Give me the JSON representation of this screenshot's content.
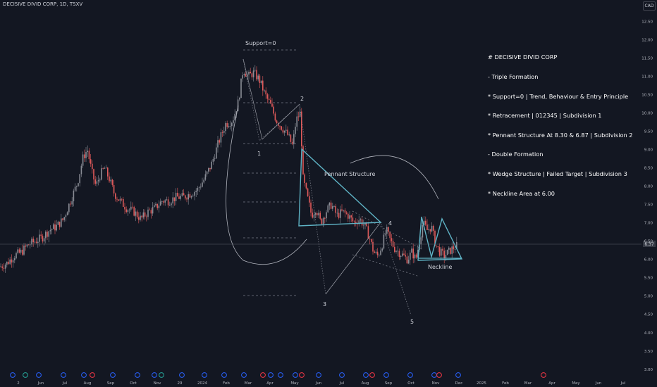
{
  "header": {
    "symbol": "DECISIVE DIVID CORP, 1D, TSXV",
    "currency": "CAD"
  },
  "note_lines": [
    "# DECISIVE DIVID CORP",
    "- Triple Formation",
    "* Support=0 | Trend, Behaviour & Entry Principle",
    "* Retracement | 012345 | Subdivision 1",
    "* Pennant Structure At 8.30 & 6.87 | Subdivision 2",
    "- Double Formation",
    "* Wedge Structure | Failed Target | Subdivision 3",
    "* Neckline Area at 6.00"
  ],
  "chart_data": {
    "type": "candlestick",
    "y_axis": {
      "ticks": [
        3.0,
        3.5,
        4.0,
        4.5,
        5.0,
        5.5,
        6.0,
        6.5,
        7.0,
        7.5,
        8.0,
        8.5,
        9.0,
        9.5,
        10.0,
        10.5,
        11.0,
        11.5,
        12.0,
        12.5
      ],
      "range": [
        2.9,
        12.7
      ]
    },
    "current_price_label": "6.37",
    "x_axis_labels": [
      "2",
      "Jun",
      "Jul",
      "Aug",
      "Sep",
      "Oct",
      "Nov",
      "29",
      "2024",
      "Feb",
      "Mar",
      "Apr",
      "May",
      "Jun",
      "Jul",
      "Aug",
      "Sep",
      "Oct",
      "Nov",
      "Dec",
      "2025",
      "Feb",
      "Mar",
      "Apr",
      "May",
      "Jun",
      "Jul"
    ],
    "annotations": {
      "support_label": "Support=0",
      "pennant_label": "Pennant Structure",
      "neckline_label": "Neckline",
      "wave_labels": [
        "1",
        "2",
        "3",
        "4",
        "5"
      ]
    },
    "price_path": [
      [
        0,
        5.8
      ],
      [
        10,
        5.9
      ],
      [
        20,
        6.1
      ],
      [
        30,
        6.2
      ],
      [
        40,
        6.4
      ],
      [
        50,
        6.5
      ],
      [
        60,
        6.6
      ],
      [
        70,
        6.8
      ],
      [
        80,
        6.9
      ],
      [
        90,
        7.1
      ],
      [
        100,
        7.6
      ],
      [
        110,
        8.1
      ],
      [
        118,
        8.8
      ],
      [
        124,
        9.0
      ],
      [
        130,
        8.4
      ],
      [
        136,
        8.0
      ],
      [
        142,
        8.3
      ],
      [
        148,
        8.5
      ],
      [
        155,
        8.2
      ],
      [
        162,
        7.8
      ],
      [
        170,
        7.6
      ],
      [
        180,
        7.4
      ],
      [
        190,
        7.3
      ],
      [
        200,
        7.1
      ],
      [
        210,
        7.3
      ],
      [
        220,
        7.4
      ],
      [
        230,
        7.6
      ],
      [
        240,
        7.6
      ],
      [
        250,
        7.7
      ],
      [
        260,
        7.7
      ],
      [
        270,
        7.8
      ],
      [
        280,
        7.9
      ],
      [
        290,
        8.2
      ],
      [
        300,
        8.6
      ],
      [
        310,
        9.2
      ],
      [
        320,
        9.7
      ],
      [
        330,
        9.8
      ],
      [
        338,
        10.3
      ],
      [
        345,
        11.2
      ],
      [
        352,
        11.0
      ],
      [
        360,
        11.1
      ],
      [
        368,
        10.9
      ],
      [
        376,
        10.5
      ],
      [
        384,
        10.2
      ],
      [
        392,
        9.8
      ],
      [
        400,
        9.6
      ],
      [
        408,
        9.4
      ],
      [
        415,
        9.1
      ],
      [
        420,
        9.8
      ],
      [
        426,
        10.0
      ],
      [
        430,
        8.2
      ],
      [
        436,
        7.7
      ],
      [
        442,
        7.2
      ],
      [
        448,
        7.4
      ],
      [
        455,
        7.0
      ],
      [
        462,
        7.3
      ],
      [
        470,
        7.5
      ],
      [
        478,
        7.2
      ],
      [
        486,
        7.3
      ],
      [
        494,
        7.2
      ],
      [
        502,
        7.0
      ],
      [
        510,
        7.1
      ],
      [
        518,
        6.9
      ],
      [
        524,
        6.6
      ],
      [
        530,
        6.2
      ],
      [
        536,
        6.1
      ],
      [
        542,
        6.4
      ],
      [
        548,
        6.8
      ],
      [
        554,
        6.5
      ],
      [
        560,
        6.3
      ],
      [
        566,
        6.2
      ],
      [
        572,
        6.1
      ],
      [
        578,
        6.0
      ],
      [
        584,
        6.2
      ],
      [
        590,
        6.0
      ],
      [
        596,
        6.6
      ],
      [
        600,
        7.0
      ],
      [
        606,
        6.8
      ],
      [
        612,
        6.9
      ],
      [
        618,
        6.4
      ],
      [
        624,
        6.2
      ],
      [
        630,
        6.1
      ],
      [
        636,
        6.2
      ],
      [
        642,
        6.3
      ],
      [
        648,
        6.37
      ]
    ]
  }
}
